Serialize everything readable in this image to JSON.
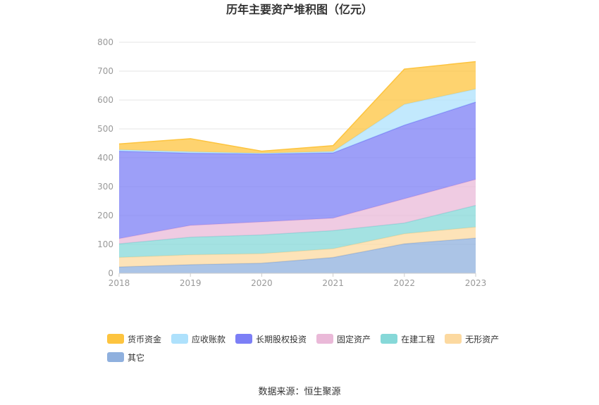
{
  "title": "历年主要资产堆积图（亿元）",
  "source": "数据来源：恒生聚源",
  "chart_data": {
    "type": "area",
    "stacked": true,
    "categories": [
      "2018",
      "2019",
      "2020",
      "2021",
      "2022",
      "2023"
    ],
    "ylim": [
      0,
      800
    ],
    "yticks": [
      0,
      100,
      200,
      300,
      400,
      500,
      600,
      700,
      800
    ],
    "grid": true,
    "legend_position": "bottom",
    "series": [
      {
        "name": "其它",
        "color": "#8fb0de",
        "values": [
          22,
          30,
          35,
          55,
          102,
          122
        ]
      },
      {
        "name": "无形资产",
        "color": "#fcd9a0",
        "values": [
          33,
          34,
          33,
          30,
          35,
          38
        ]
      },
      {
        "name": "在建工程",
        "color": "#86d8d8",
        "values": [
          47,
          61,
          65,
          63,
          37,
          75
        ]
      },
      {
        "name": "固定资产",
        "color": "#eab9d8",
        "values": [
          18,
          41,
          45,
          43,
          84,
          90
        ]
      },
      {
        "name": "长期股权投资",
        "color": "#7c7ff6",
        "values": [
          303,
          250,
          235,
          226,
          255,
          268
        ]
      },
      {
        "name": "应收账款",
        "color": "#aee1fc",
        "values": [
          5,
          5,
          3,
          5,
          72,
          45
        ]
      },
      {
        "name": "货币资金",
        "color": "#fdc43f",
        "values": [
          20,
          45,
          7,
          20,
          122,
          95
        ]
      }
    ],
    "legend_order": [
      "货币资金",
      "应收账款",
      "长期股权投资",
      "固定资产",
      "在建工程",
      "无形资产",
      "其它"
    ]
  }
}
